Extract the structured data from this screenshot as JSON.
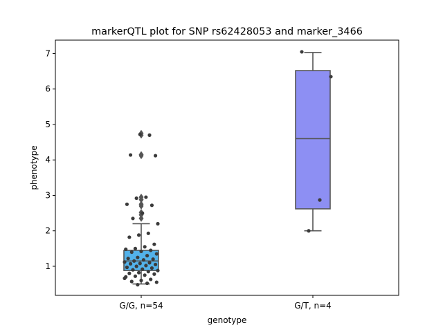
{
  "chart_data": {
    "type": "box",
    "title": "markerQTL plot for SNP rs62428053 and marker_3466",
    "xlabel": "genotype",
    "ylabel": "phenotype",
    "ylim": [
      0.18,
      7.38
    ],
    "yticks": [
      1,
      2,
      3,
      4,
      5,
      6,
      7
    ],
    "categories": [
      "G/G, n=54",
      "G/T, n=4"
    ],
    "colors": {
      "box_gg": "#53b2ea",
      "box_gt": "#8d8ff3",
      "lines": "#555555",
      "points": "#3b3b3b",
      "outliers": "#555555"
    },
    "boxes": [
      {
        "category": "G/G, n=54",
        "whisker_low": 0.5,
        "q1": 0.88,
        "median": 1.15,
        "q3": 1.45,
        "whisker_high": 2.2,
        "outliers": [
          2.35,
          2.45,
          2.52,
          2.7,
          2.75,
          2.88,
          2.95,
          4.12,
          4.15,
          4.7,
          4.75
        ]
      },
      {
        "category": "G/T, n=4",
        "whisker_low": 2.0,
        "q1": 2.62,
        "median": 4.6,
        "q3": 6.52,
        "whisker_high": 7.03,
        "outliers": []
      }
    ],
    "points": [
      {
        "category": "G/G, n=54",
        "values": [
          0.48,
          0.52,
          0.55,
          0.57,
          0.6,
          0.63,
          0.7,
          0.72,
          0.75,
          0.78,
          0.8,
          0.82,
          0.85,
          0.88,
          0.9,
          0.92,
          0.95,
          0.97,
          1.0,
          1.02,
          1.05,
          1.07,
          1.08,
          1.1,
          1.12,
          1.15,
          1.18,
          1.2,
          1.22,
          1.25,
          1.3,
          1.35,
          1.4,
          1.42,
          1.45,
          1.48,
          1.5,
          1.55,
          1.62,
          1.82,
          1.88,
          1.93,
          2.2,
          2.35,
          2.5,
          2.72,
          2.75,
          2.92,
          2.95,
          4.12,
          4.14,
          4.72,
          4.7,
          0.66
        ]
      },
      {
        "category": "G/T, n=4",
        "values": [
          2.0,
          2.87,
          6.35,
          7.05
        ]
      }
    ]
  }
}
